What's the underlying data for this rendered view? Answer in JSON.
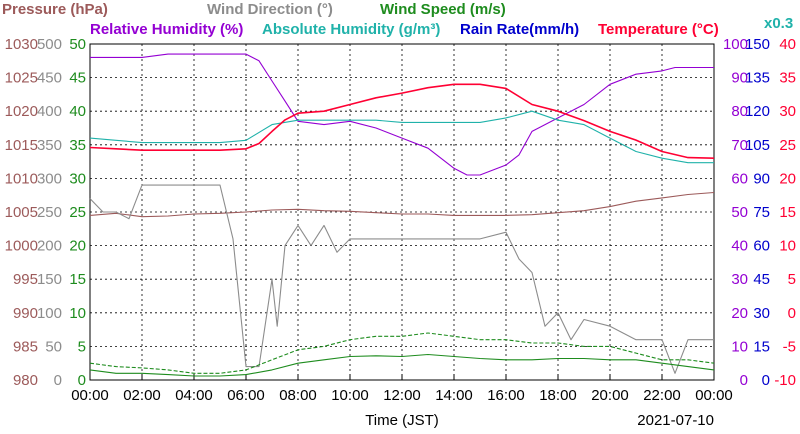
{
  "chart_data": {
    "type": "line",
    "legend": {
      "row1": [
        {
          "label": "Pressure (hPa)",
          "color": "#9c5a5a"
        },
        {
          "label": "Wind Direction (°)",
          "color": "#8c8c8c"
        },
        {
          "label": "Wind Speed (m/s)",
          "color": "#1e8c1e"
        }
      ],
      "row2": [
        {
          "label": "Relative Humidity (%)",
          "color": "#9400d3"
        },
        {
          "label": "Absolute Humidity (g/m³)",
          "color": "#20b2aa"
        },
        {
          "label": "Rain Rate(mm/h)",
          "color": "#0000cc"
        },
        {
          "label": "Temperature (°C)",
          "color": "#ff0033"
        },
        {
          "label": "x0.3",
          "color": "#20b2aa"
        }
      ]
    },
    "xlabel": "Time (JST)",
    "date": "2021-07-10",
    "x_ticks": [
      "00:00",
      "02:00",
      "04:00",
      "06:00",
      "08:00",
      "10:00",
      "12:00",
      "14:00",
      "16:00",
      "18:00",
      "20:00",
      "22:00",
      "00:00"
    ],
    "x_range_hours": [
      0,
      24
    ],
    "grid": true,
    "axes": {
      "pressure": {
        "ticks": [
          "1030",
          "1025",
          "1020",
          "1015",
          "1010",
          "1005",
          "1000",
          "995",
          "990",
          "985",
          "980"
        ],
        "range": [
          980,
          1030
        ],
        "color": "#9c5a5a"
      },
      "wind_direction": {
        "ticks": [
          "500",
          "450",
          "400",
          "350",
          "300",
          "250",
          "200",
          "150",
          "100",
          "50",
          "0"
        ],
        "range": [
          0,
          500
        ],
        "color": "#8c8c8c"
      },
      "wind_speed": {
        "ticks": [
          "50",
          "45",
          "40",
          "35",
          "30",
          "25",
          "20",
          "15",
          "10",
          "5",
          "0"
        ],
        "range": [
          0,
          50
        ],
        "color": "#1e8c1e"
      },
      "relative_humidity": {
        "ticks": [
          "100",
          "90",
          "80",
          "70",
          "60",
          "50",
          "40",
          "30",
          "20",
          "10",
          "0"
        ],
        "range": [
          0,
          100
        ],
        "color": "#9400d3"
      },
      "rain_rate": {
        "ticks": [
          "150",
          "135",
          "120",
          "105",
          "90",
          "75",
          "60",
          "45",
          "30",
          "15",
          "0"
        ],
        "range": [
          0,
          150
        ],
        "color": "#0000cc"
      },
      "temperature": {
        "ticks": [
          "40",
          "35",
          "30",
          "25",
          "20",
          "15",
          "10",
          "5",
          "0",
          "-5",
          "-10"
        ],
        "range": [
          -10,
          40
        ],
        "color": "#ff0033"
      }
    },
    "series": [
      {
        "name": "Pressure (hPa)",
        "axis": "pressure",
        "color": "#9c5a5a",
        "x": [
          0,
          1,
          2,
          3,
          4,
          5,
          6,
          7,
          8,
          9,
          10,
          11,
          12,
          13,
          14,
          15,
          16,
          17,
          18,
          19,
          20,
          21,
          22,
          23,
          24
        ],
        "y": [
          1004.5,
          1004.8,
          1004.3,
          1004.4,
          1004.7,
          1004.8,
          1005.0,
          1005.3,
          1005.4,
          1005.2,
          1005.1,
          1004.9,
          1004.7,
          1004.7,
          1004.5,
          1004.5,
          1004.5,
          1004.6,
          1004.9,
          1005.2,
          1005.8,
          1006.6,
          1007.1,
          1007.6,
          1007.9
        ]
      },
      {
        "name": "Relative Humidity (%)",
        "axis": "relative_humidity",
        "color": "#9400d3",
        "x": [
          0,
          1,
          2,
          3,
          4,
          5,
          6,
          6.5,
          7,
          7.5,
          8,
          9,
          10,
          11,
          12,
          13,
          14,
          14.5,
          15,
          16,
          16.5,
          17,
          18,
          19,
          20,
          21,
          22,
          22.5,
          23,
          24
        ],
        "y": [
          96,
          96,
          96,
          97,
          97,
          97,
          97,
          95,
          89,
          83,
          77,
          76,
          77,
          75,
          72,
          69,
          63,
          61,
          61,
          64,
          67,
          74,
          78,
          82,
          88,
          91,
          92,
          93,
          93,
          93
        ]
      },
      {
        "name": "Absolute Humidity (g/m³)",
        "axis": "rain_rate",
        "color": "#20b2aa",
        "x": [
          0,
          1,
          2,
          3,
          4,
          5,
          6,
          7,
          8,
          9,
          10,
          11,
          12,
          13,
          14,
          15,
          16,
          17,
          18,
          19,
          20,
          21,
          22,
          23,
          24
        ],
        "y": [
          108,
          107,
          106,
          106,
          106,
          106,
          107,
          114,
          116,
          116,
          116,
          116,
          115,
          115,
          115,
          115,
          117,
          120,
          116,
          114,
          108,
          102,
          99,
          97,
          97
        ]
      },
      {
        "name": "Temperature (°C)",
        "axis": "temperature",
        "color": "#ff0033",
        "x": [
          0,
          1,
          2,
          3,
          4,
          5,
          6,
          6.5,
          7,
          7.5,
          8,
          9,
          10,
          11,
          12,
          13,
          14,
          15,
          16,
          17,
          18,
          19,
          20,
          21,
          22,
          23,
          24
        ],
        "y": [
          24.6,
          24.4,
          24.2,
          24.2,
          24.2,
          24.2,
          24.4,
          25.2,
          27,
          28.7,
          29.7,
          30,
          31,
          32,
          32.7,
          33.5,
          34,
          34,
          33.4,
          31,
          30,
          28.6,
          27,
          25.7,
          24,
          23.1,
          23
        ]
      },
      {
        "name": "Wind Direction (°)",
        "axis": "wind_direction",
        "color": "#8c8c8c",
        "x": [
          0,
          0.5,
          1,
          1.5,
          2,
          3,
          4,
          5,
          5.5,
          6,
          6.5,
          7,
          7.2,
          7.5,
          8,
          8.5,
          9,
          9.5,
          10,
          11,
          12,
          13,
          14,
          15,
          16,
          16.5,
          17,
          17.5,
          18,
          18.5,
          19,
          20,
          21,
          21.5,
          22,
          22.5,
          23,
          23.5,
          24
        ],
        "y": [
          270,
          250,
          250,
          240,
          290,
          290,
          290,
          290,
          210,
          20,
          20,
          150,
          80,
          200,
          230,
          200,
          230,
          190,
          210,
          210,
          210,
          210,
          210,
          210,
          220,
          180,
          160,
          80,
          100,
          60,
          90,
          80,
          60,
          60,
          60,
          10,
          60,
          60,
          60
        ]
      },
      {
        "name": "Wind Speed (m/s)",
        "axis": "wind_speed",
        "color": "#1e8c1e",
        "x": [
          0,
          1,
          2,
          3,
          4,
          5,
          6,
          7,
          8,
          9,
          10,
          11,
          12,
          13,
          14,
          15,
          16,
          17,
          18,
          19,
          20,
          21,
          22,
          23,
          24
        ],
        "y": [
          1.5,
          1,
          1,
          0.8,
          0.6,
          0.6,
          0.8,
          1.5,
          2.5,
          3,
          3.5,
          3.6,
          3.5,
          3.8,
          3.5,
          3.2,
          3,
          3,
          3.2,
          3.2,
          3,
          3,
          2.5,
          2,
          1.5
        ]
      },
      {
        "name": "Wind Speed gust",
        "axis": "wind_speed",
        "color": "#1e8c1e",
        "x": [
          0,
          1,
          2,
          3,
          4,
          5,
          6,
          7,
          8,
          9,
          10,
          11,
          12,
          13,
          14,
          15,
          16,
          17,
          18,
          19,
          20,
          21,
          22,
          23,
          24
        ],
        "y": [
          2.5,
          2,
          1.8,
          1.5,
          1,
          1,
          1.5,
          3,
          4.5,
          5,
          6,
          6.5,
          6.5,
          7,
          6.5,
          6,
          6,
          5.5,
          5.5,
          5,
          5,
          4,
          3,
          3,
          2.5
        ]
      }
    ]
  }
}
